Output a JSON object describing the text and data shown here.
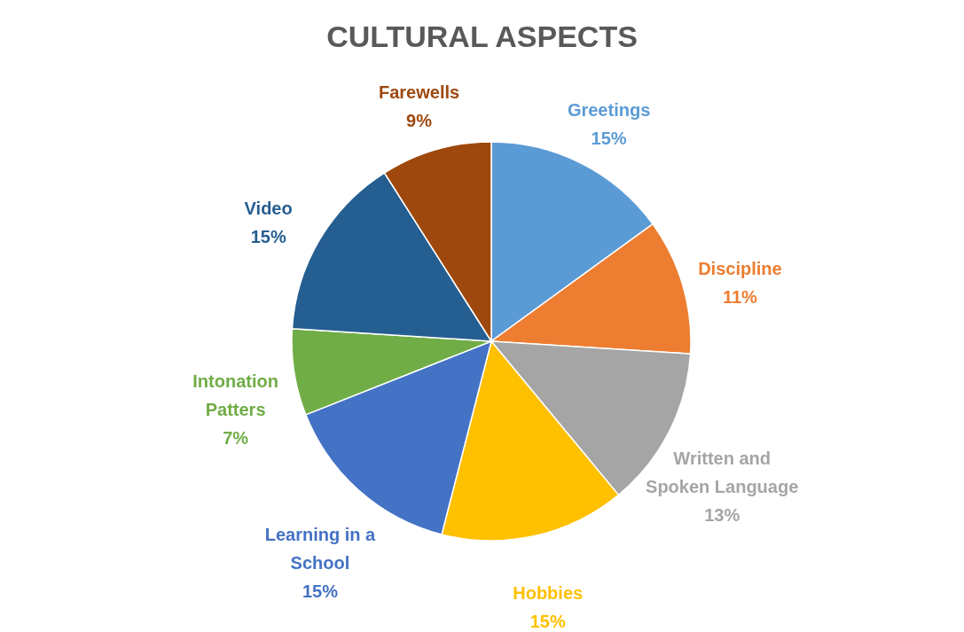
{
  "chart_data": {
    "type": "pie",
    "title": "CULTURAL ASPECTS",
    "categories": [
      "Greetings",
      "Discipline",
      "Written and Spoken Language",
      "Hobbies",
      "Learning in a School",
      "Intonation Patters",
      "Video",
      "Farewells"
    ],
    "values": [
      15,
      11,
      13,
      15,
      15,
      7,
      15,
      9
    ],
    "colors": [
      "#5b9bd5",
      "#ed7d31",
      "#a5a5a5",
      "#ffc000",
      "#4472c4",
      "#70ad47",
      "#255e91",
      "#9e480e"
    ],
    "value_labels": [
      "15%",
      "11%",
      "13%",
      "15%",
      "15%",
      "7%",
      "15%",
      "9%"
    ]
  }
}
